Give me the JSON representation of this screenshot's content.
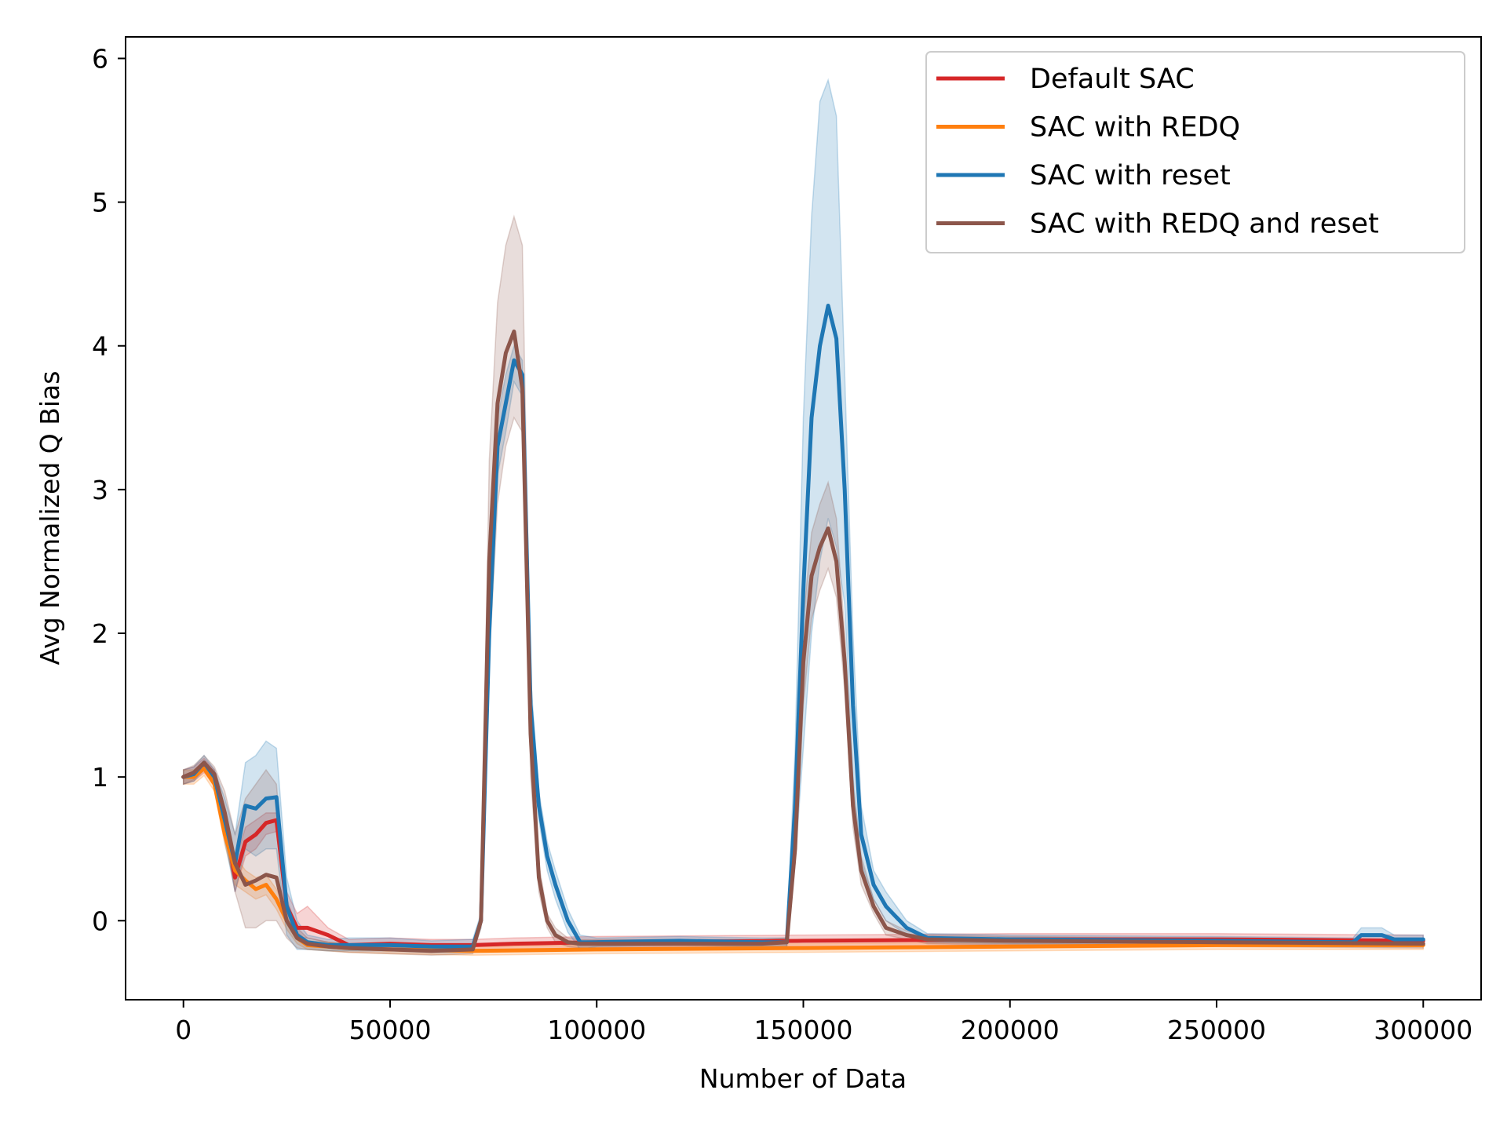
{
  "chart_data": {
    "type": "line",
    "title": "",
    "xlabel": "Number of Data",
    "ylabel": "Avg Normalized Q Bias",
    "xlim": [
      -14000,
      314000
    ],
    "ylim": [
      -0.55,
      6.15
    ],
    "xticks": [
      0,
      50000,
      100000,
      150000,
      200000,
      250000,
      300000
    ],
    "yticks": [
      0,
      1,
      2,
      3,
      4,
      5,
      6
    ],
    "xtick_labels": [
      "0",
      "50000",
      "100000",
      "150000",
      "200000",
      "250000",
      "300000"
    ],
    "ytick_labels": [
      "0",
      "1",
      "2",
      "3",
      "4",
      "5",
      "6"
    ],
    "grid": false,
    "legend_position": "top-right",
    "series": [
      {
        "name": "Default SAC",
        "color": "#d62728",
        "x": [
          0,
          2500,
          5000,
          7500,
          10000,
          12500,
          15000,
          17500,
          20000,
          22500,
          25000,
          27500,
          30000,
          35000,
          40000,
          50000,
          60000,
          70000,
          80000,
          100000,
          150000,
          200000,
          250000,
          300000
        ],
        "y": [
          1.0,
          1.02,
          1.08,
          1.0,
          0.7,
          0.3,
          0.55,
          0.6,
          0.68,
          0.7,
          0.1,
          -0.05,
          -0.05,
          -0.1,
          -0.17,
          -0.16,
          -0.17,
          -0.17,
          -0.16,
          -0.15,
          -0.14,
          -0.13,
          -0.13,
          -0.14
        ],
        "band_upper": [
          1.05,
          1.07,
          1.13,
          1.05,
          0.78,
          0.4,
          0.65,
          0.7,
          0.75,
          0.75,
          0.2,
          0.05,
          0.1,
          -0.05,
          -0.13,
          -0.12,
          -0.13,
          -0.13,
          -0.12,
          -0.11,
          -0.1,
          -0.09,
          -0.09,
          -0.1
        ],
        "band_lower": [
          0.95,
          0.97,
          1.03,
          0.95,
          0.62,
          0.2,
          0.45,
          0.5,
          0.6,
          0.62,
          0.0,
          -0.12,
          -0.12,
          -0.15,
          -0.2,
          -0.2,
          -0.21,
          -0.21,
          -0.2,
          -0.19,
          -0.18,
          -0.17,
          -0.17,
          -0.18
        ]
      },
      {
        "name": "SAC with REDQ",
        "color": "#ff7f0e",
        "x": [
          0,
          2500,
          5000,
          7500,
          10000,
          12500,
          15000,
          17500,
          20000,
          22500,
          25000,
          27500,
          30000,
          35000,
          40000,
          50000,
          70000,
          100000,
          150000,
          200000,
          250000,
          300000
        ],
        "y": [
          1.0,
          1.0,
          1.06,
          0.95,
          0.6,
          0.35,
          0.28,
          0.22,
          0.25,
          0.15,
          0.0,
          -0.12,
          -0.17,
          -0.18,
          -0.19,
          -0.2,
          -0.21,
          -0.2,
          -0.19,
          -0.18,
          -0.17,
          -0.17
        ],
        "band_upper": [
          1.05,
          1.05,
          1.11,
          1.0,
          0.67,
          0.45,
          0.35,
          0.3,
          0.32,
          0.22,
          0.06,
          -0.08,
          -0.14,
          -0.15,
          -0.16,
          -0.17,
          -0.18,
          -0.17,
          -0.16,
          -0.15,
          -0.14,
          -0.14
        ],
        "band_lower": [
          0.95,
          0.95,
          1.01,
          0.9,
          0.53,
          0.25,
          0.2,
          0.15,
          0.18,
          0.08,
          -0.06,
          -0.16,
          -0.2,
          -0.21,
          -0.22,
          -0.23,
          -0.24,
          -0.23,
          -0.22,
          -0.21,
          -0.2,
          -0.2
        ]
      },
      {
        "name": "SAC with reset",
        "color": "#1f77b4",
        "x": [
          0,
          2500,
          5000,
          7500,
          10000,
          12500,
          15000,
          17500,
          20000,
          22500,
          25000,
          27500,
          30000,
          35000,
          40000,
          50000,
          60000,
          70000,
          72000,
          74000,
          76000,
          78000,
          80000,
          82000,
          84000,
          86000,
          88000,
          90000,
          93000,
          96000,
          100000,
          120000,
          140000,
          146000,
          148000,
          150000,
          152000,
          154000,
          156000,
          158000,
          160000,
          162000,
          164000,
          167000,
          170000,
          175000,
          180000,
          200000,
          250000,
          283000,
          285000,
          290000,
          293000,
          300000
        ],
        "y": [
          1.0,
          1.02,
          1.1,
          1.0,
          0.7,
          0.4,
          0.8,
          0.78,
          0.85,
          0.86,
          0.1,
          -0.1,
          -0.15,
          -0.17,
          -0.17,
          -0.17,
          -0.18,
          -0.18,
          0.0,
          2.0,
          3.3,
          3.6,
          3.9,
          3.8,
          1.5,
          0.8,
          0.45,
          0.25,
          0.0,
          -0.15,
          -0.15,
          -0.14,
          -0.15,
          -0.15,
          0.8,
          2.3,
          3.5,
          4.0,
          4.28,
          4.05,
          3.0,
          1.5,
          0.6,
          0.25,
          0.1,
          -0.05,
          -0.12,
          -0.13,
          -0.14,
          -0.15,
          -0.1,
          -0.1,
          -0.13,
          -0.13
        ],
        "band_upper": [
          1.05,
          1.07,
          1.15,
          1.05,
          0.85,
          0.6,
          1.1,
          1.15,
          1.25,
          1.2,
          0.3,
          0.0,
          -0.1,
          -0.13,
          -0.12,
          -0.12,
          -0.14,
          -0.13,
          0.05,
          2.2,
          3.5,
          3.8,
          4.0,
          3.9,
          1.7,
          0.9,
          0.55,
          0.35,
          0.08,
          -0.1,
          -0.12,
          -0.11,
          -0.12,
          -0.12,
          1.2,
          3.5,
          4.9,
          5.7,
          5.85,
          5.6,
          3.8,
          2.0,
          0.8,
          0.35,
          0.2,
          0.0,
          -0.09,
          -0.1,
          -0.11,
          -0.12,
          -0.05,
          -0.05,
          -0.1,
          -0.1
        ],
        "band_lower": [
          0.95,
          0.97,
          1.05,
          0.95,
          0.55,
          0.2,
          0.5,
          0.45,
          0.5,
          0.5,
          -0.1,
          -0.2,
          -0.2,
          -0.21,
          -0.21,
          -0.21,
          -0.22,
          -0.22,
          -0.05,
          1.8,
          3.1,
          3.4,
          3.75,
          3.65,
          1.3,
          0.7,
          0.35,
          0.15,
          -0.08,
          -0.2,
          -0.18,
          -0.17,
          -0.18,
          -0.18,
          0.4,
          1.2,
          2.0,
          2.5,
          2.8,
          2.6,
          2.2,
          1.0,
          0.4,
          0.15,
          0.0,
          -0.1,
          -0.15,
          -0.16,
          -0.17,
          -0.18,
          -0.15,
          -0.15,
          -0.16,
          -0.16
        ]
      },
      {
        "name": "SAC with REDQ and reset",
        "color": "#8c564b",
        "x": [
          0,
          2500,
          5000,
          7500,
          10000,
          12500,
          15000,
          17500,
          20000,
          22500,
          25000,
          27500,
          30000,
          35000,
          40000,
          50000,
          60000,
          70000,
          72000,
          74000,
          76000,
          78000,
          80000,
          82000,
          84000,
          86000,
          88000,
          90000,
          93000,
          96000,
          100000,
          120000,
          140000,
          146000,
          148000,
          150000,
          152000,
          154000,
          156000,
          158000,
          160000,
          162000,
          164000,
          167000,
          170000,
          175000,
          180000,
          200000,
          250000,
          300000
        ],
        "y": [
          1.0,
          1.03,
          1.1,
          1.02,
          0.75,
          0.4,
          0.25,
          0.28,
          0.32,
          0.3,
          0.0,
          -0.12,
          -0.16,
          -0.18,
          -0.19,
          -0.2,
          -0.21,
          -0.2,
          0.0,
          2.5,
          3.6,
          3.95,
          4.1,
          3.7,
          1.3,
          0.3,
          0.0,
          -0.1,
          -0.15,
          -0.16,
          -0.16,
          -0.16,
          -0.16,
          -0.15,
          0.5,
          1.8,
          2.4,
          2.6,
          2.73,
          2.5,
          1.8,
          0.8,
          0.35,
          0.1,
          -0.05,
          -0.1,
          -0.13,
          -0.14,
          -0.15,
          -0.16
        ],
        "band_upper": [
          1.05,
          1.08,
          1.15,
          1.07,
          0.9,
          0.6,
          0.85,
          0.95,
          1.05,
          0.95,
          0.15,
          -0.05,
          -0.12,
          -0.15,
          -0.16,
          -0.17,
          -0.18,
          -0.17,
          0.05,
          3.2,
          4.3,
          4.7,
          4.9,
          4.7,
          1.6,
          0.4,
          0.05,
          -0.05,
          -0.12,
          -0.13,
          -0.13,
          -0.13,
          -0.13,
          -0.12,
          0.6,
          2.1,
          2.7,
          2.9,
          3.05,
          2.8,
          2.0,
          0.95,
          0.45,
          0.15,
          0.0,
          -0.07,
          -0.1,
          -0.11,
          -0.12,
          -0.13
        ],
        "band_lower": [
          0.95,
          0.98,
          1.05,
          0.97,
          0.6,
          0.2,
          -0.05,
          -0.05,
          0.0,
          0.0,
          -0.12,
          -0.19,
          -0.2,
          -0.21,
          -0.22,
          -0.23,
          -0.24,
          -0.23,
          -0.05,
          1.8,
          2.9,
          3.3,
          3.5,
          3.4,
          1.0,
          0.2,
          -0.05,
          -0.15,
          -0.18,
          -0.19,
          -0.19,
          -0.19,
          -0.19,
          -0.18,
          0.4,
          1.5,
          2.1,
          2.3,
          2.45,
          2.25,
          1.6,
          0.65,
          0.25,
          0.05,
          -0.1,
          -0.13,
          -0.16,
          -0.17,
          -0.18,
          -0.19
        ]
      }
    ]
  }
}
